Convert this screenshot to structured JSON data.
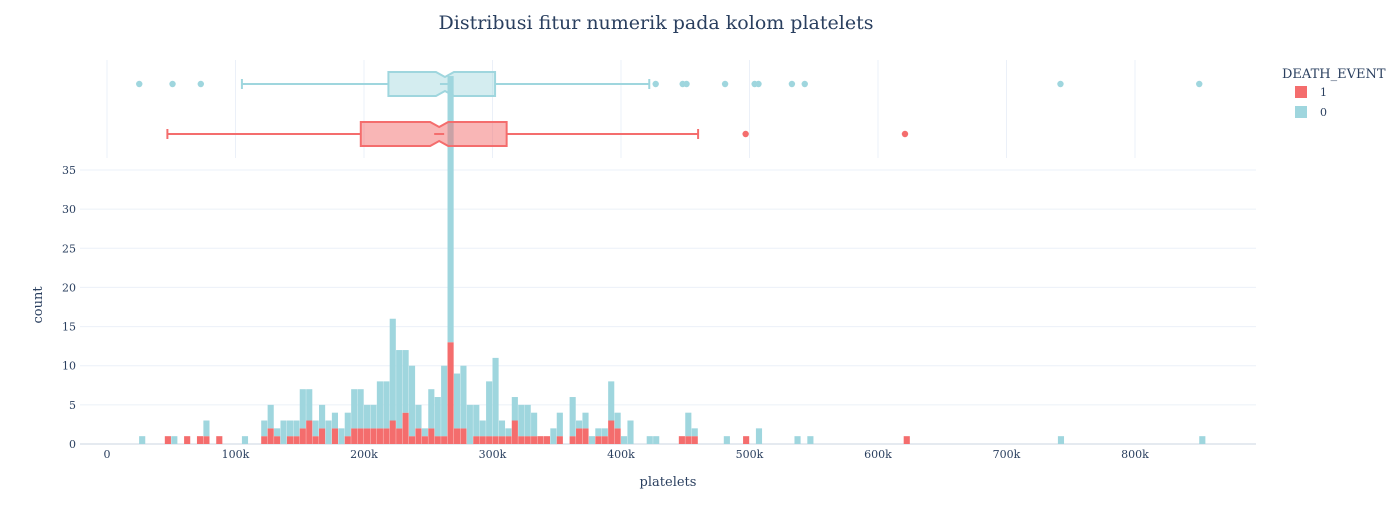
{
  "chart_data": {
    "type": "histogram",
    "title": "Distribusi fitur numerik pada kolom platelets",
    "xlabel": "platelets",
    "ylabel": "count",
    "xlim": [
      -10000,
      880000
    ],
    "ylim": [
      0,
      35
    ],
    "x_ticks": [
      0,
      100000,
      200000,
      300000,
      400000,
      500000,
      600000,
      700000,
      800000
    ],
    "x_tick_labels": [
      "0",
      "100k",
      "200k",
      "300k",
      "400k",
      "500k",
      "600k",
      "700k",
      "800k"
    ],
    "y_ticks": [
      0,
      5,
      10,
      15,
      20,
      25,
      30,
      35
    ],
    "y_tick_labels": [
      "0",
      "5",
      "10",
      "15",
      "20",
      "25",
      "30",
      "35"
    ],
    "barmode": "stack",
    "bin_width": 5000,
    "legend": {
      "title": "DEATH_EVENT",
      "position": "top-right",
      "entries": [
        {
          "label": "1",
          "color": "#f46d6d"
        },
        {
          "label": "0",
          "color": "#9fd6de"
        }
      ]
    },
    "series": [
      {
        "name": "1",
        "color": "#f46d6d",
        "box": {
          "lowerfence": 47000,
          "q1": 197500,
          "median": 258500,
          "q3": 311000,
          "upperfence": 460000,
          "outliers": [
            497000,
            621000
          ]
        },
        "bins": [
          [
            45000,
            1
          ],
          [
            60000,
            1
          ],
          [
            70000,
            1
          ],
          [
            75000,
            1
          ],
          [
            85000,
            1
          ],
          [
            120000,
            1
          ],
          [
            125000,
            2
          ],
          [
            130000,
            1
          ],
          [
            140000,
            1
          ],
          [
            145000,
            1
          ],
          [
            150000,
            2
          ],
          [
            155000,
            3
          ],
          [
            160000,
            1
          ],
          [
            165000,
            2
          ],
          [
            175000,
            2
          ],
          [
            185000,
            1
          ],
          [
            190000,
            2
          ],
          [
            195000,
            2
          ],
          [
            200000,
            2
          ],
          [
            205000,
            2
          ],
          [
            210000,
            2
          ],
          [
            215000,
            2
          ],
          [
            220000,
            3
          ],
          [
            225000,
            2
          ],
          [
            230000,
            4
          ],
          [
            235000,
            1
          ],
          [
            240000,
            2
          ],
          [
            245000,
            1
          ],
          [
            250000,
            2
          ],
          [
            255000,
            1
          ],
          [
            260000,
            1
          ],
          [
            265000,
            13
          ],
          [
            270000,
            2
          ],
          [
            275000,
            2
          ],
          [
            285000,
            1
          ],
          [
            290000,
            1
          ],
          [
            295000,
            1
          ],
          [
            300000,
            1
          ],
          [
            305000,
            1
          ],
          [
            310000,
            1
          ],
          [
            315000,
            3
          ],
          [
            320000,
            1
          ],
          [
            325000,
            1
          ],
          [
            330000,
            1
          ],
          [
            335000,
            1
          ],
          [
            340000,
            1
          ],
          [
            350000,
            1
          ],
          [
            360000,
            1
          ],
          [
            365000,
            2
          ],
          [
            370000,
            2
          ],
          [
            380000,
            1
          ],
          [
            385000,
            1
          ],
          [
            390000,
            3
          ],
          [
            395000,
            2
          ],
          [
            445000,
            1
          ],
          [
            450000,
            1
          ],
          [
            455000,
            1
          ],
          [
            495000,
            1
          ],
          [
            620000,
            1
          ]
        ]
      },
      {
        "name": "0",
        "color": "#9fd6de",
        "box": {
          "lowerfence": 105000,
          "q1": 219000,
          "median": 263000,
          "q3": 302000,
          "upperfence": 422000,
          "outliers": [
            25100,
            51000,
            73000,
            427000,
            448000,
            451000,
            481000,
            504000,
            507000,
            533000,
            543000,
            742000,
            850000
          ]
        },
        "bins": [
          [
            25000,
            1
          ],
          [
            50000,
            1
          ],
          [
            75000,
            2
          ],
          [
            105000,
            1
          ],
          [
            120000,
            2
          ],
          [
            125000,
            3
          ],
          [
            130000,
            1
          ],
          [
            135000,
            3
          ],
          [
            140000,
            2
          ],
          [
            145000,
            2
          ],
          [
            150000,
            5
          ],
          [
            155000,
            4
          ],
          [
            160000,
            2
          ],
          [
            165000,
            3
          ],
          [
            170000,
            3
          ],
          [
            175000,
            2
          ],
          [
            180000,
            2
          ],
          [
            185000,
            3
          ],
          [
            190000,
            5
          ],
          [
            195000,
            5
          ],
          [
            200000,
            3
          ],
          [
            205000,
            3
          ],
          [
            210000,
            6
          ],
          [
            215000,
            6
          ],
          [
            220000,
            13
          ],
          [
            225000,
            10
          ],
          [
            230000,
            8
          ],
          [
            235000,
            9
          ],
          [
            240000,
            3
          ],
          [
            245000,
            1
          ],
          [
            250000,
            5
          ],
          [
            255000,
            5
          ],
          [
            260000,
            9
          ],
          [
            265000,
            34
          ],
          [
            270000,
            7
          ],
          [
            275000,
            8
          ],
          [
            280000,
            5
          ],
          [
            285000,
            4
          ],
          [
            290000,
            2
          ],
          [
            295000,
            7
          ],
          [
            300000,
            10
          ],
          [
            305000,
            2
          ],
          [
            310000,
            1
          ],
          [
            315000,
            3
          ],
          [
            320000,
            4
          ],
          [
            325000,
            4
          ],
          [
            330000,
            3
          ],
          [
            345000,
            2
          ],
          [
            350000,
            3
          ],
          [
            360000,
            5
          ],
          [
            365000,
            1
          ],
          [
            370000,
            2
          ],
          [
            375000,
            1
          ],
          [
            380000,
            1
          ],
          [
            385000,
            1
          ],
          [
            390000,
            5
          ],
          [
            395000,
            2
          ],
          [
            400000,
            1
          ],
          [
            405000,
            3
          ],
          [
            420000,
            1
          ],
          [
            425000,
            1
          ],
          [
            450000,
            3
          ],
          [
            455000,
            1
          ],
          [
            480000,
            1
          ],
          [
            505000,
            2
          ],
          [
            535000,
            1
          ],
          [
            545000,
            1
          ],
          [
            740000,
            1
          ],
          [
            850000,
            1
          ]
        ]
      }
    ]
  }
}
